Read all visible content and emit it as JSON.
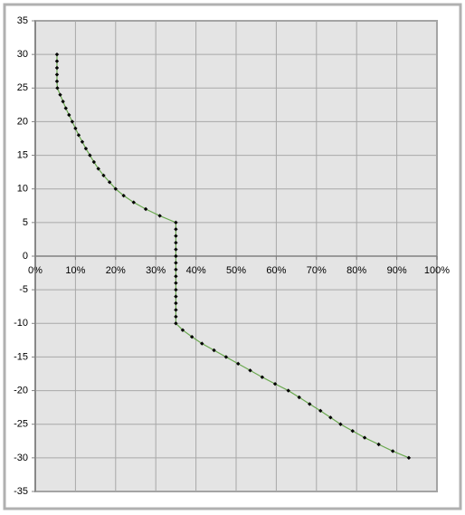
{
  "chart_data": {
    "type": "scatter",
    "x": [
      5.4,
      5.4,
      5.4,
      5.4,
      5.4,
      5.5,
      6.2,
      6.9,
      7.6,
      8.4,
      9.2,
      10,
      10.8,
      11.7,
      12.6,
      13.6,
      14.6,
      15.7,
      17,
      18.5,
      20,
      22,
      24.5,
      27.5,
      31,
      35,
      35,
      35,
      35,
      35,
      35,
      35,
      35,
      35,
      35,
      35,
      35,
      35,
      35,
      35,
      35,
      36.7,
      39,
      41.5,
      44.5,
      47.5,
      50.5,
      53.5,
      56.5,
      59.7,
      63,
      65.7,
      68.3,
      71,
      73.5,
      76,
      79,
      82,
      85.5,
      89,
      93
    ],
    "series": [
      {
        "color": "#6aa84f",
        "marker_color": "#000000",
        "values": [
          30,
          29,
          28,
          27,
          26,
          25,
          24,
          23,
          22,
          21,
          20,
          19,
          18,
          17,
          16,
          15,
          14,
          13,
          12,
          11,
          10,
          9,
          8,
          7,
          6,
          5,
          4,
          3,
          2,
          1,
          0,
          -1,
          -2,
          -3,
          -4,
          -5,
          -6,
          -7,
          -8,
          -9,
          -10,
          -11,
          -12,
          -13,
          -14,
          -15,
          -16,
          -17,
          -18,
          -19,
          -20,
          -21,
          -22,
          -23,
          -24,
          -25,
          -26,
          -27,
          -28,
          -29,
          -30
        ]
      }
    ],
    "xlim": [
      0,
      100
    ],
    "xticks": [
      {
        "value": 0,
        "label": "0%"
      },
      {
        "value": 10,
        "label": "10%"
      },
      {
        "value": 20,
        "label": "20%"
      },
      {
        "value": 30,
        "label": "30%"
      },
      {
        "value": 40,
        "label": "40%"
      },
      {
        "value": 50,
        "label": "50%"
      },
      {
        "value": 60,
        "label": "60%"
      },
      {
        "value": 70,
        "label": "70%"
      },
      {
        "value": 80,
        "label": "80%"
      },
      {
        "value": 90,
        "label": "90%"
      },
      {
        "value": 100,
        "label": "100%"
      }
    ],
    "ylim": [
      -35,
      35
    ],
    "yticks": [
      -35,
      -30,
      -25,
      -20,
      -15,
      -10,
      -5,
      0,
      5,
      10,
      15,
      20,
      25,
      30,
      35
    ],
    "grid": true
  }
}
